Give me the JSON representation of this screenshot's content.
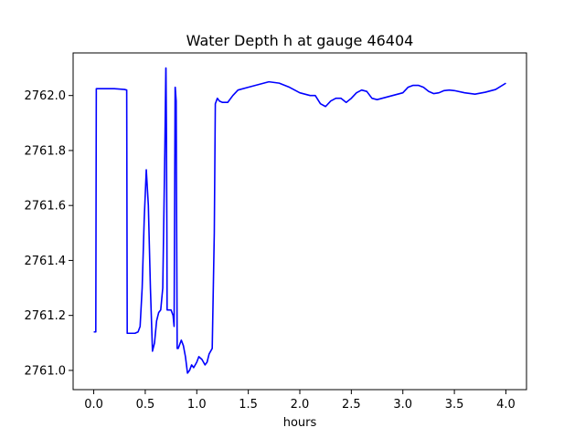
{
  "chart_data": {
    "type": "line",
    "title": "Water Depth h at gauge 46404",
    "xlabel": "hours",
    "ylabel": "",
    "xlim": [
      -0.2,
      4.2
    ],
    "ylim": [
      2760.93,
      2762.155
    ],
    "xticks": [
      0.0,
      0.5,
      1.0,
      1.5,
      2.0,
      2.5,
      3.0,
      3.5,
      4.0
    ],
    "xtick_labels": [
      "0.0",
      "0.5",
      "1.0",
      "1.5",
      "2.0",
      "2.5",
      "3.0",
      "3.5",
      "4.0"
    ],
    "yticks": [
      2761.0,
      2761.2,
      2761.4,
      2761.6,
      2761.8,
      2762.0
    ],
    "ytick_labels": [
      "2761.0",
      "2761.2",
      "2761.4",
      "2761.6",
      "2761.8",
      "2762.0"
    ],
    "grid": false,
    "series": [
      {
        "color": "#0000ff",
        "x": [
          0.0,
          0.02,
          0.025,
          0.05,
          0.1,
          0.2,
          0.3,
          0.32,
          0.325,
          0.35,
          0.4,
          0.43,
          0.45,
          0.47,
          0.49,
          0.51,
          0.53,
          0.55,
          0.57,
          0.59,
          0.61,
          0.63,
          0.65,
          0.67,
          0.69,
          0.7,
          0.701,
          0.705,
          0.71,
          0.712,
          0.72,
          0.75,
          0.77,
          0.78,
          0.79,
          0.791,
          0.8,
          0.805,
          0.81,
          0.82,
          0.83,
          0.85,
          0.87,
          0.89,
          0.91,
          0.93,
          0.95,
          0.97,
          1.0,
          1.02,
          1.05,
          1.08,
          1.1,
          1.12,
          1.15,
          1.17,
          1.18,
          1.19,
          1.2,
          1.22,
          1.25,
          1.3,
          1.35,
          1.4,
          1.5,
          1.6,
          1.7,
          1.8,
          1.9,
          2.0,
          2.1,
          2.15,
          2.2,
          2.25,
          2.3,
          2.35,
          2.4,
          2.45,
          2.5,
          2.55,
          2.6,
          2.65,
          2.7,
          2.75,
          2.8,
          2.9,
          3.0,
          3.05,
          3.1,
          3.15,
          3.2,
          3.25,
          3.3,
          3.35,
          3.4,
          3.45,
          3.5,
          3.6,
          3.7,
          3.8,
          3.9,
          4.0
        ],
        "y": [
          2761.14,
          2761.14,
          2762.025,
          2762.025,
          2762.025,
          2762.025,
          2762.022,
          2762.02,
          2761.135,
          2761.135,
          2761.135,
          2761.14,
          2761.16,
          2761.3,
          2761.55,
          2761.73,
          2761.6,
          2761.3,
          2761.07,
          2761.1,
          2761.18,
          2761.21,
          2761.22,
          2761.3,
          2761.8,
          2762.1,
          2762.1,
          2761.9,
          2761.5,
          2761.22,
          2761.22,
          2761.22,
          2761.2,
          2761.16,
          2762.03,
          2762.03,
          2761.98,
          2761.5,
          2761.08,
          2761.08,
          2761.09,
          2761.11,
          2761.09,
          2761.05,
          2760.99,
          2761.0,
          2761.02,
          2761.01,
          2761.03,
          2761.05,
          2761.04,
          2761.02,
          2761.03,
          2761.06,
          2761.08,
          2761.5,
          2761.97,
          2761.98,
          2761.99,
          2761.98,
          2761.975,
          2761.975,
          2762.0,
          2762.02,
          2762.03,
          2762.04,
          2762.05,
          2762.045,
          2762.03,
          2762.01,
          2762.0,
          2762.0,
          2761.97,
          2761.96,
          2761.98,
          2761.99,
          2761.99,
          2761.975,
          2761.99,
          2762.01,
          2762.02,
          2762.015,
          2761.99,
          2761.985,
          2761.99,
          2762.0,
          2762.01,
          2762.03,
          2762.037,
          2762.037,
          2762.03,
          2762.015,
          2762.007,
          2762.01,
          2762.018,
          2762.02,
          2762.018,
          2762.01,
          2762.005,
          2762.012,
          2762.022,
          2762.045
        ]
      }
    ]
  }
}
